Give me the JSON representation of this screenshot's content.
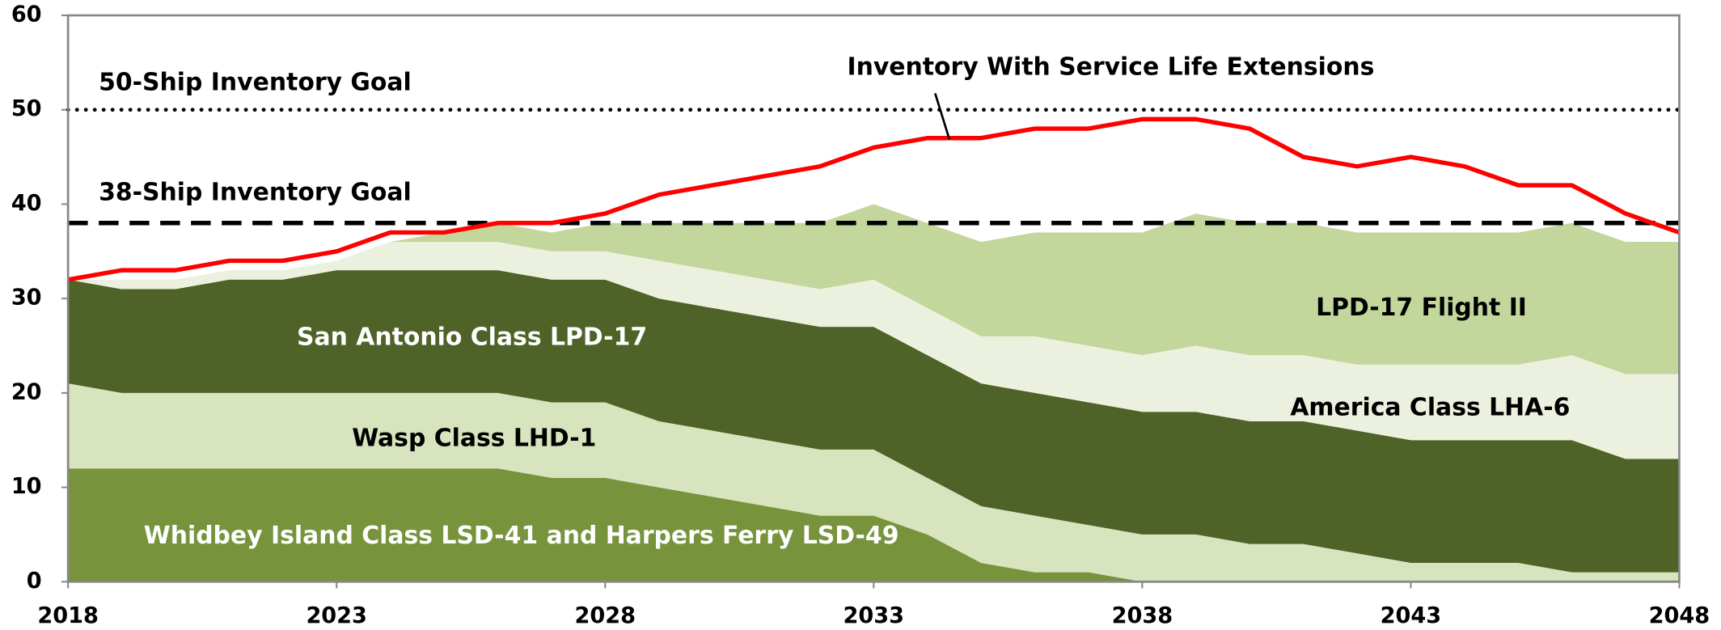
{
  "chart_data": {
    "type": "stacked_area",
    "x": [
      2018,
      2019,
      2020,
      2021,
      2022,
      2023,
      2024,
      2025,
      2026,
      2027,
      2028,
      2029,
      2030,
      2031,
      2032,
      2033,
      2034,
      2035,
      2036,
      2037,
      2038,
      2039,
      2040,
      2041,
      2042,
      2043,
      2044,
      2045,
      2046,
      2047,
      2048
    ],
    "xlim": [
      2018,
      2048
    ],
    "xticks": [
      2018,
      2023,
      2028,
      2033,
      2038,
      2043,
      2048
    ],
    "ylim": [
      0,
      60
    ],
    "yticks": [
      0,
      10,
      20,
      30,
      40,
      50,
      60
    ],
    "series": [
      {
        "name": "Whidbey Island Class LSD-41 and Harpers Ferry LSD-49",
        "color": "#77933c",
        "values": [
          12,
          12,
          12,
          12,
          12,
          12,
          12,
          12,
          12,
          11,
          11,
          10,
          9,
          8,
          7,
          7,
          5,
          2,
          1,
          1,
          0,
          0,
          0,
          0,
          0,
          0,
          0,
          0,
          0,
          0,
          0
        ]
      },
      {
        "name": "Wasp Class LHD-1",
        "color": "#d7e4bd",
        "values": [
          9,
          8,
          8,
          8,
          8,
          8,
          8,
          8,
          8,
          8,
          8,
          7,
          7,
          7,
          7,
          7,
          6,
          6,
          6,
          5,
          5,
          5,
          4,
          4,
          3,
          2,
          2,
          2,
          1,
          1,
          1
        ]
      },
      {
        "name": "San Antonio Class LPD-17",
        "color": "#4f6228",
        "values": [
          11,
          11,
          11,
          12,
          12,
          13,
          13,
          13,
          13,
          13,
          13,
          13,
          13,
          13,
          13,
          13,
          13,
          13,
          13,
          13,
          13,
          13,
          13,
          13,
          13,
          13,
          13,
          13,
          14,
          12,
          12
        ]
      },
      {
        "name": "America Class LHA-6",
        "color": "#ebf1de",
        "values": [
          0,
          1,
          1,
          1,
          1,
          1,
          3,
          3,
          3,
          3,
          3,
          4,
          4,
          4,
          4,
          5,
          5,
          5,
          6,
          6,
          6,
          7,
          7,
          7,
          7,
          8,
          8,
          8,
          9,
          9,
          9
        ]
      },
      {
        "name": "LPD-17 Flight II",
        "color": "#c3d69b",
        "values": [
          0,
          0,
          0,
          0,
          0,
          0,
          0,
          1,
          2,
          2,
          3,
          4,
          5,
          6,
          7,
          8,
          9,
          10,
          11,
          12,
          13,
          14,
          14,
          14,
          14,
          14,
          14,
          14,
          14,
          14,
          14
        ]
      }
    ],
    "line": {
      "name": "Inventory With Service Life Extensions",
      "color": "#ff0000",
      "values": [
        32,
        33,
        33,
        34,
        34,
        35,
        37,
        37,
        38,
        38,
        39,
        41,
        42,
        43,
        44,
        46,
        47,
        47,
        48,
        48,
        49,
        49,
        48,
        45,
        44,
        45,
        44,
        42,
        42,
        39,
        37
      ]
    },
    "reference_lines": [
      {
        "value": 50,
        "label": "50-Ship Inventory Goal",
        "style": "dotted"
      },
      {
        "value": 38,
        "label": "38-Ship Inventory Goal",
        "style": "dashed"
      }
    ]
  }
}
